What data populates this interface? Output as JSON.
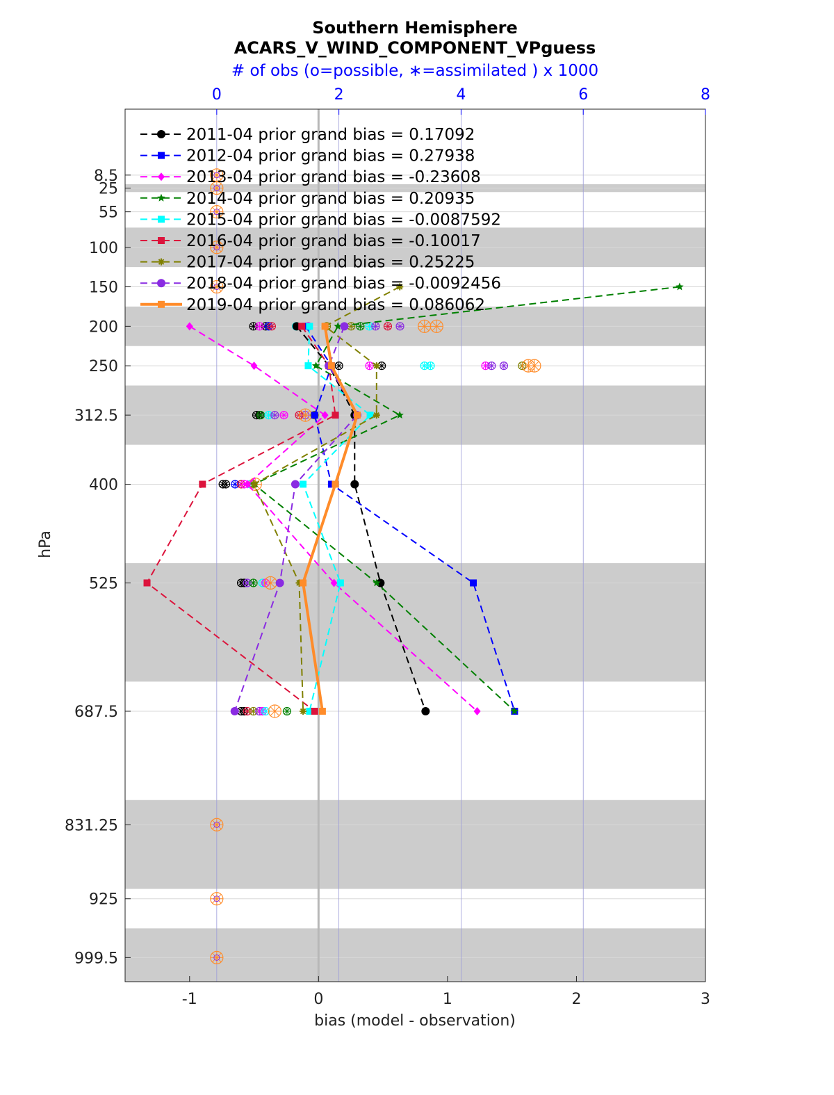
{
  "chart_data": {
    "type": "line",
    "title": "Southern Hemisphere",
    "subtitle": "ACARS_V_WIND_COMPONENT_VPguess",
    "top_axis_label": "# of obs (o=possible, ∗=assimilated ) x 1000",
    "xlabel": "bias (model - observation)",
    "ylabel": "hPa",
    "xlim": [
      -1.5,
      3
    ],
    "ylim": [
      1030,
      -75
    ],
    "top_xlim": [
      -1.5,
      8
    ],
    "x_ticks": [
      -1,
      0,
      1,
      2,
      3
    ],
    "top_ticks": [
      0,
      2,
      4,
      6,
      8
    ],
    "levels": [
      8.5,
      25,
      55,
      100,
      150,
      200,
      250,
      312.5,
      400,
      525,
      687.5,
      831.25,
      925,
      999.5
    ],
    "level_labels": [
      "8.5",
      "25",
      "55",
      "100",
      "150",
      "200",
      "250",
      "312.5",
      "400",
      "525",
      "687.5",
      "831.25",
      "925",
      "999.5"
    ],
    "bands": [
      [
        20,
        30
      ],
      [
        75,
        125
      ],
      [
        175,
        225
      ],
      [
        275,
        350
      ],
      [
        500,
        650
      ],
      [
        800,
        912.5
      ],
      [
        962.5,
        1030
      ]
    ],
    "series": [
      {
        "name": "2011-04",
        "label": "2011-04 prior grand bias = 0.17092",
        "color": "#000000",
        "marker": "circle",
        "width": 2,
        "dash": true,
        "levels": [
          200,
          250,
          312.5,
          400,
          525,
          687.5
        ],
        "bias": [
          -0.17,
          0.08,
          0.28,
          0.28,
          0.48,
          0.83
        ]
      },
      {
        "name": "2012-04",
        "label": "2012-04 prior grand bias = 0.27938",
        "color": "#0000ff",
        "marker": "square",
        "width": 2,
        "dash": true,
        "levels": [
          200,
          250,
          312.5,
          400,
          525,
          687.5
        ],
        "bias": [
          -0.1,
          0.1,
          -0.03,
          0.1,
          1.2,
          1.52
        ]
      },
      {
        "name": "2013-04",
        "label": "2013-04 prior grand bias = -0.23608",
        "color": "#ff00ff",
        "marker": "diamond",
        "width": 2,
        "dash": true,
        "levels": [
          200,
          250,
          312.5,
          400,
          525,
          687.5
        ],
        "bias": [
          -1.0,
          -0.5,
          0.05,
          -0.55,
          0.12,
          1.23
        ]
      },
      {
        "name": "2014-04",
        "label": "2014-04 prior grand bias = 0.20935",
        "color": "#008000",
        "marker": "star",
        "width": 2,
        "dash": true,
        "levels": [
          150,
          200,
          250,
          312.5,
          400,
          525,
          687.5
        ],
        "bias": [
          2.8,
          0.15,
          -0.02,
          0.63,
          -0.5,
          0.45,
          1.52
        ]
      },
      {
        "name": "2015-04",
        "label": "2015-04 prior grand bias = -0.0087592",
        "color": "#00ffff",
        "marker": "square",
        "width": 2,
        "dash": true,
        "levels": [
          200,
          250,
          312.5,
          400,
          525,
          687.5
        ],
        "bias": [
          -0.07,
          -0.08,
          0.4,
          -0.12,
          0.17,
          -0.07
        ]
      },
      {
        "name": "2016-04",
        "label": "2016-04 prior grand bias = -0.10017",
        "color": "#dc143c",
        "marker": "square",
        "width": 2,
        "dash": true,
        "levels": [
          200,
          250,
          312.5,
          400,
          525,
          687.5
        ],
        "bias": [
          -0.13,
          0.08,
          0.13,
          -0.9,
          -1.33,
          -0.03
        ]
      },
      {
        "name": "2017-04",
        "label": "2017-04 prior grand bias = 0.25225",
        "color": "#808000",
        "marker": "asterisk",
        "width": 2,
        "dash": true,
        "levels": [
          150,
          200,
          250,
          312.5,
          400,
          525,
          687.5
        ],
        "bias": [
          0.63,
          0.05,
          0.45,
          0.45,
          -0.5,
          -0.15,
          -0.12
        ]
      },
      {
        "name": "2018-04",
        "label": "2018-04 prior grand bias = -0.0092456",
        "color": "#8a2be2",
        "marker": "circle",
        "width": 2,
        "dash": true,
        "levels": [
          200,
          250,
          312.5,
          400,
          525,
          687.5
        ],
        "bias": [
          0.2,
          0.08,
          0.3,
          -0.18,
          -0.3,
          -0.65
        ]
      },
      {
        "name": "2019-04",
        "label": "2019-04 prior grand bias = 0.086062",
        "color": "#ff8c2a",
        "marker": "square",
        "width": 4,
        "dash": false,
        "levels": [
          200,
          250,
          312.5,
          400,
          525,
          687.5
        ],
        "bias": [
          0.05,
          0.1,
          0.3,
          0.13,
          -0.12,
          0.03
        ]
      }
    ],
    "obs_levels": [
      8.5,
      25,
      55,
      100,
      150,
      831.25,
      925,
      999.5
    ],
    "obs_zero_color": "#ff8c2a",
    "obs_counts": [
      {
        "level": 200,
        "color": "#000000",
        "values": [
          0.6,
          0.8
        ]
      },
      {
        "level": 200,
        "color": "#0000ff",
        "values": [
          0.85
        ]
      },
      {
        "level": 200,
        "color": "#ff00ff",
        "values": [
          0.7,
          1.5
        ]
      },
      {
        "level": 200,
        "color": "#00ffff",
        "values": [
          1.3,
          2.5
        ]
      },
      {
        "level": 200,
        "color": "#dc143c",
        "values": [
          0.9,
          2.8
        ]
      },
      {
        "level": 200,
        "color": "#808000",
        "values": [
          1.8,
          2.2
        ]
      },
      {
        "level": 200,
        "color": "#8a2be2",
        "values": [
          2.6,
          3.0
        ]
      },
      {
        "level": 200,
        "color": "#008000",
        "values": [
          2.35
        ]
      },
      {
        "level": 200,
        "color": "#ff8c2a",
        "values": [
          3.4,
          3.6
        ]
      },
      {
        "level": 250,
        "color": "#000000",
        "values": [
          2.0,
          2.7
        ]
      },
      {
        "level": 250,
        "color": "#ff00ff",
        "values": [
          2.5,
          4.4
        ]
      },
      {
        "level": 250,
        "color": "#00ffff",
        "values": [
          3.4,
          3.5
        ]
      },
      {
        "level": 250,
        "color": "#8a2be2",
        "values": [
          4.5,
          4.7
        ]
      },
      {
        "level": 250,
        "color": "#808000",
        "values": [
          5.0
        ]
      },
      {
        "level": 250,
        "color": "#ff8c2a",
        "values": [
          5.1,
          5.2
        ]
      },
      {
        "level": 312.5,
        "color": "#000000",
        "values": [
          0.65,
          0.7
        ]
      },
      {
        "level": 312.5,
        "color": "#008000",
        "values": [
          0.72
        ]
      },
      {
        "level": 312.5,
        "color": "#00ffff",
        "values": [
          0.85
        ]
      },
      {
        "level": 312.5,
        "color": "#ff00ff",
        "values": [
          1.1
        ]
      },
      {
        "level": 312.5,
        "color": "#8a2be2",
        "values": [
          0.95,
          1.45
        ]
      },
      {
        "level": 312.5,
        "color": "#dc143c",
        "values": [
          1.35
        ]
      },
      {
        "level": 312.5,
        "color": "#ff8c2a",
        "values": [
          1.45
        ]
      },
      {
        "level": 312.5,
        "color": "#808000",
        "values": [
          1.6
        ]
      },
      {
        "level": 400,
        "color": "#000000",
        "values": [
          0.1,
          0.15
        ]
      },
      {
        "level": 400,
        "color": "#0000ff",
        "values": [
          0.3
        ]
      },
      {
        "level": 400,
        "color": "#dc143c",
        "values": [
          0.4
        ]
      },
      {
        "level": 400,
        "color": "#ff00ff",
        "values": [
          0.45
        ]
      },
      {
        "level": 400,
        "color": "#00ffff",
        "values": [
          0.55
        ]
      },
      {
        "level": 400,
        "color": "#808000",
        "values": [
          0.6
        ]
      },
      {
        "level": 400,
        "color": "#ff8c2a",
        "values": [
          0.63
        ]
      },
      {
        "level": 525,
        "color": "#000000",
        "values": [
          0.4,
          0.45
        ]
      },
      {
        "level": 525,
        "color": "#8a2be2",
        "values": [
          0.5
        ]
      },
      {
        "level": 525,
        "color": "#008000",
        "values": [
          0.6
        ]
      },
      {
        "level": 525,
        "color": "#00ffff",
        "values": [
          0.75
        ]
      },
      {
        "level": 525,
        "color": "#ff00ff",
        "values": [
          0.8
        ]
      },
      {
        "level": 525,
        "color": "#ff8c2a",
        "values": [
          0.88
        ]
      },
      {
        "level": 687.5,
        "color": "#000000",
        "values": [
          0.4,
          0.45
        ]
      },
      {
        "level": 687.5,
        "color": "#dc143c",
        "values": [
          0.5
        ]
      },
      {
        "level": 687.5,
        "color": "#808000",
        "values": [
          0.6
        ]
      },
      {
        "level": 687.5,
        "color": "#8a2be2",
        "values": [
          0.7
        ]
      },
      {
        "level": 687.5,
        "color": "#ff00ff",
        "values": [
          0.75
        ]
      },
      {
        "level": 687.5,
        "color": "#00ffff",
        "values": [
          0.8
        ]
      },
      {
        "level": 687.5,
        "color": "#ff8c2a",
        "values": [
          0.95
        ]
      },
      {
        "level": 687.5,
        "color": "#008000",
        "values": [
          1.15
        ]
      }
    ]
  }
}
